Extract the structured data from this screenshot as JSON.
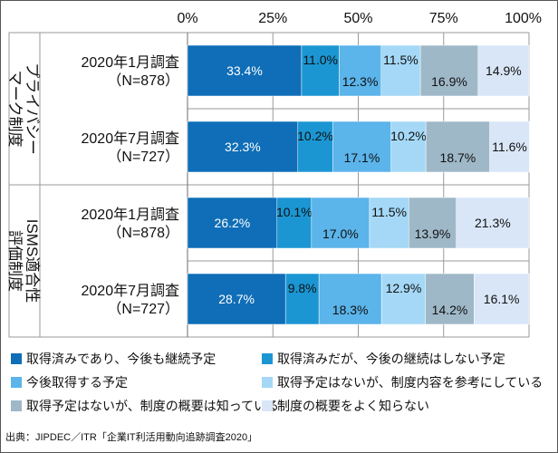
{
  "chart_data": {
    "type": "bar",
    "orientation": "horizontal-stacked-100",
    "x_ticks": [
      "0%",
      "25%",
      "50%",
      "75%",
      "100%"
    ],
    "xlim": [
      0,
      100
    ],
    "groups": [
      {
        "name": "プライバシーマーク制度",
        "lines": [
          "プライバシー",
          "マーク制度"
        ]
      },
      {
        "name": "ISMS適合性評価制度",
        "lines": [
          "ISMS適合性",
          "評価制度"
        ]
      }
    ],
    "rows": [
      {
        "group": 0,
        "line1": "2020年1月調査",
        "line2": "（N=878）",
        "values": [
          33.4,
          11.0,
          12.3,
          11.5,
          16.9,
          14.9
        ]
      },
      {
        "group": 0,
        "line1": "2020年7月調査",
        "line2": "（N=727）",
        "values": [
          32.3,
          10.2,
          17.1,
          10.2,
          18.7,
          11.6
        ]
      },
      {
        "group": 1,
        "line1": "2020年1月調査",
        "line2": "（N=878）",
        "values": [
          26.2,
          10.1,
          17.0,
          11.5,
          13.9,
          21.3
        ]
      },
      {
        "group": 1,
        "line1": "2020年7月調査",
        "line2": "（N=727）",
        "values": [
          28.7,
          9.8,
          18.3,
          12.9,
          14.2,
          16.1
        ]
      }
    ],
    "series": [
      {
        "name": "取得済みであり、今後も継続予定",
        "color": "#0f6eb7",
        "text_color": "#ffffff"
      },
      {
        "name": "取得済みだが、今後の継続はしない予定",
        "color": "#1b96d3",
        "text_color": "#111111"
      },
      {
        "name": "今後取得する予定",
        "color": "#5bb4ea",
        "text_color": "#111111"
      },
      {
        "name": "取得予定はないが、制度内容を参考にしている",
        "color": "#a4d8f6",
        "text_color": "#111111"
      },
      {
        "name": "取得予定はないが、制度の概要は知っている",
        "color": "#9fb8c8",
        "text_color": "#111111"
      },
      {
        "name": "制度の概要をよく知らない",
        "color": "#d9e6f7",
        "text_color": "#111111"
      }
    ],
    "source": "出典：JIPDEC／ITR「企業IT利活用動向追跡調査2020」",
    "grid": true,
    "legend_position": "bottom"
  }
}
